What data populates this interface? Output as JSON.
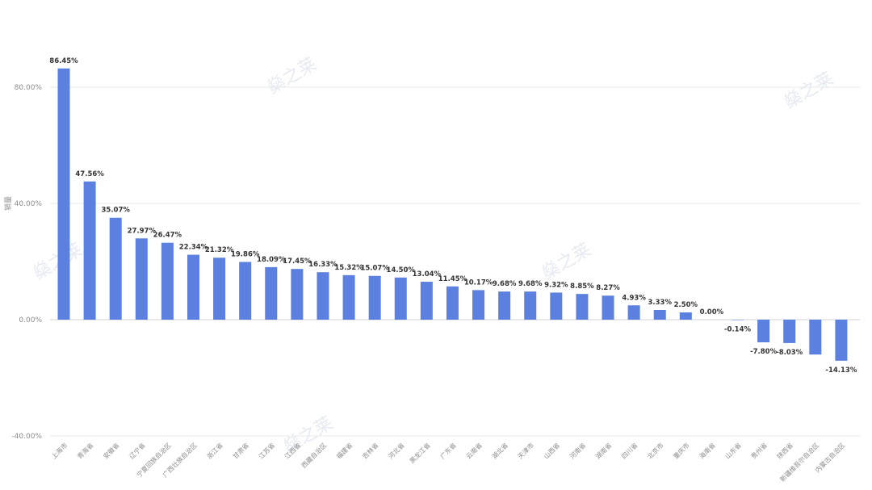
{
  "chart_data": {
    "type": "bar",
    "ylabel": "销量",
    "ylim": [
      -40,
      86.45
    ],
    "yticks": [
      -40,
      0,
      40,
      80
    ],
    "ytick_labels": [
      "-40.00%",
      "0.00%",
      "40.00%",
      "80.00%"
    ],
    "bar_color": "#5b80e0",
    "grid": true,
    "watermark": "燊之莱",
    "categories": [
      "上海市",
      "青海省",
      "安徽省",
      "辽宁省",
      "宁夏回族自治区",
      "广西壮族自治区",
      "浙江省",
      "甘肃省",
      "江苏省",
      "江西省",
      "西藏自治区",
      "福建省",
      "吉林省",
      "河北省",
      "黑龙江省",
      "广东省",
      "云南省",
      "湖北省",
      "天津市",
      "山西省",
      "河南省",
      "湖南省",
      "四川省",
      "北京市",
      "重庆市",
      "海南省",
      "山东省",
      "贵州省",
      "陕西省",
      "新疆维吾尔自治区",
      "内蒙古自治区"
    ],
    "values": [
      86.45,
      47.56,
      35.07,
      27.97,
      26.47,
      22.34,
      21.32,
      19.86,
      18.09,
      17.45,
      16.33,
      15.32,
      15.07,
      14.5,
      13.04,
      11.45,
      10.17,
      9.68,
      9.68,
      9.32,
      8.85,
      8.27,
      4.93,
      3.33,
      2.5,
      0.0,
      -0.14,
      -7.8,
      -8.03,
      -12.0,
      -14.13
    ],
    "data_labels": [
      "86.45%",
      "47.56%",
      "35.07%",
      "27.97%",
      "26.47%",
      "22.34%",
      "21.32%",
      "19.86%",
      "18.09%",
      "17.45%",
      "16.33%",
      "15.32%",
      "15.07%",
      "14.50%",
      "13.04%",
      "11.45%",
      "10.17%",
      "9.68%",
      "9.68%",
      "9.32%",
      "8.85%",
      "8.27%",
      "4.93%",
      "3.33%",
      "2.50%",
      "0.00%",
      "-0.14%",
      "-7.80%",
      "-8.03%",
      "",
      "-14.13%"
    ]
  }
}
